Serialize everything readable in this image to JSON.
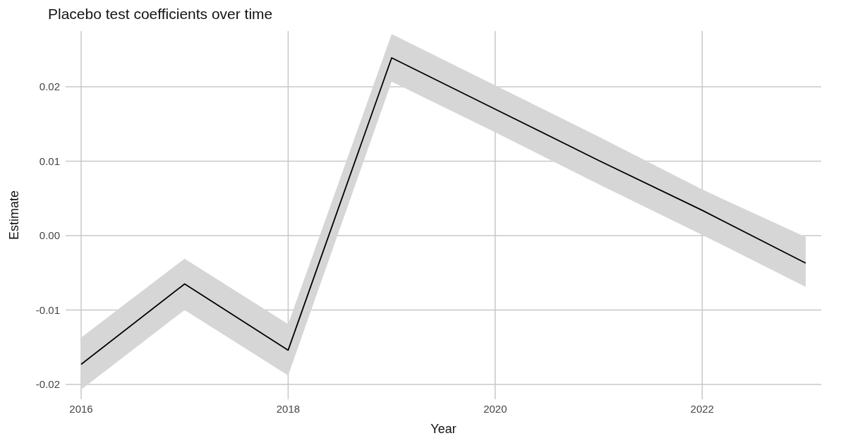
{
  "chart_data": {
    "type": "line",
    "title": "Placebo test coefficients over time",
    "xlabel": "Year",
    "ylabel": "Estimate",
    "x": [
      2016,
      2017,
      2018,
      2019,
      2020,
      2021,
      2022,
      2023
    ],
    "series": [
      {
        "color": "#000000",
        "values": [
          -0.0173,
          -0.0065,
          -0.0154,
          0.0239,
          0.017,
          0.0101,
          0.0034,
          -0.0037
        ],
        "lower": [
          -0.0207,
          -0.01,
          -0.0188,
          0.0207,
          0.0139,
          0.0069,
          0.0001,
          -0.0069
        ],
        "upper": [
          -0.0137,
          -0.0031,
          -0.0119,
          0.0271,
          0.0202,
          0.0133,
          0.0062,
          -0.0002
        ]
      }
    ],
    "xlim": [
      2015.85,
      2023.15
    ],
    "xticks": [
      2016,
      2018,
      2020,
      2022
    ],
    "ylim": [
      -0.022,
      0.0275
    ],
    "yticks": [
      {
        "value": -0.02,
        "label": "-0.02"
      },
      {
        "value": -0.01,
        "label": "-0.01"
      },
      {
        "value": 0,
        "label": "0.00"
      },
      {
        "value": 0.01,
        "label": "0.01"
      },
      {
        "value": 0.02,
        "label": "0.02"
      }
    ],
    "grid": true,
    "legend": false,
    "marker": "none",
    "line_style": "solid"
  }
}
